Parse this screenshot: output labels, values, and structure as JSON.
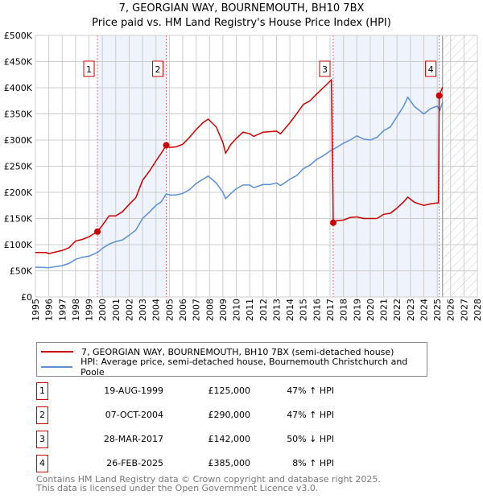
{
  "chart_data": {
    "type": "line",
    "title": "7, GEORGIAN WAY, BOURNEMOUTH, BH10 7BX",
    "subtitle": "Price paid vs. HM Land Registry's House Price Index (HPI)",
    "xlim": [
      1995,
      2028
    ],
    "ylim": [
      0,
      500000
    ],
    "x_ticks": [
      "1995",
      "1996",
      "1997",
      "1998",
      "1999",
      "2000",
      "2001",
      "2002",
      "2003",
      "2004",
      "2005",
      "2006",
      "2007",
      "2008",
      "2009",
      "2010",
      "2011",
      "2012",
      "2013",
      "2014",
      "2015",
      "2016",
      "2017",
      "2018",
      "2019",
      "2020",
      "2021",
      "2022",
      "2023",
      "2024",
      "2025",
      "2026",
      "2027",
      "2028"
    ],
    "y_ticks": [
      {
        "v": 0,
        "label": "£0"
      },
      {
        "v": 50000,
        "label": "£50K"
      },
      {
        "v": 100000,
        "label": "£100K"
      },
      {
        "v": 150000,
        "label": "£150K"
      },
      {
        "v": 200000,
        "label": "£200K"
      },
      {
        "v": 250000,
        "label": "£250K"
      },
      {
        "v": 300000,
        "label": "£300K"
      },
      {
        "v": 350000,
        "label": "£350K"
      },
      {
        "v": 400000,
        "label": "£400K"
      },
      {
        "v": 450000,
        "label": "£450K"
      },
      {
        "v": 500000,
        "label": "£500K"
      }
    ],
    "grid": true,
    "shaded_ranges": [
      [
        1999.63,
        2004.77
      ],
      [
        2017.24,
        2025.15
      ]
    ],
    "forecast_from": 2025.4,
    "series": [
      {
        "name": "7, GEORGIAN WAY, BOURNEMOUTH, BH10 7BX (semi-detached house)",
        "color": "#cc0000",
        "x": [
          1995,
          1995.8,
          1996,
          1997,
          1997.5,
          1998,
          1998.5,
          1999,
          1999.63,
          2000,
          2000.5,
          2001,
          2001.5,
          2002,
          2002.5,
          2003,
          2003.5,
          2004,
          2004.4,
          2004.77,
          2005,
          2005.5,
          2006,
          2006.5,
          2007,
          2007.5,
          2007.9,
          2008.5,
          2009,
          2009.2,
          2009.6,
          2010,
          2010.5,
          2011,
          2011.3,
          2012,
          2012.5,
          2013,
          2013.3,
          2014,
          2014.5,
          2015,
          2015.5,
          2016,
          2016.5,
          2017.1,
          2017.24,
          2017.5,
          2018,
          2018.5,
          2019,
          2019.5,
          2020,
          2020.5,
          2021,
          2021.5,
          2022,
          2022.5,
          2022.8,
          2023.3,
          2024,
          2024.5,
          2025.1,
          2025.15,
          2025.4
        ],
        "y": [
          85000,
          85000,
          83000,
          89000,
          94000,
          107000,
          110000,
          115000,
          125000,
          137000,
          155000,
          155000,
          163000,
          177000,
          190000,
          223000,
          240000,
          260000,
          275000,
          290000,
          286000,
          287000,
          292000,
          305000,
          320000,
          333000,
          340000,
          325000,
          295000,
          275000,
          292000,
          303000,
          315000,
          312000,
          307000,
          315000,
          316000,
          317000,
          312000,
          333000,
          350000,
          368000,
          375000,
          388000,
          400000,
          415000,
          142000,
          146000,
          147000,
          152000,
          153000,
          150000,
          150000,
          150000,
          158000,
          160000,
          170000,
          182000,
          191000,
          181000,
          175000,
          178000,
          180000,
          385000,
          401000
        ]
      },
      {
        "name": "HPI: Average price, semi-detached house, Bournemouth Christchurch and Poole",
        "color": "#5b8fd4",
        "x": [
          1995,
          1996,
          1997,
          1997.5,
          1998,
          1998.5,
          1999,
          1999.63,
          2000,
          2000.5,
          2001,
          2001.5,
          2002,
          2002.5,
          2003,
          2003.5,
          2004,
          2004.4,
          2004.77,
          2005,
          2005.5,
          2006,
          2006.5,
          2007,
          2007.5,
          2007.9,
          2008.5,
          2009,
          2009.2,
          2009.6,
          2010,
          2010.5,
          2011,
          2011.3,
          2012,
          2012.5,
          2013,
          2013.3,
          2014,
          2014.5,
          2015,
          2015.5,
          2016,
          2016.5,
          2017,
          2017.5,
          2018,
          2018.5,
          2019,
          2019.5,
          2020,
          2020.5,
          2021,
          2021.5,
          2022,
          2022.5,
          2022.8,
          2023.3,
          2024,
          2024.5,
          2025,
          2025.2,
          2025.4
        ],
        "y": [
          57000,
          56000,
          60000,
          64000,
          72000,
          76000,
          78000,
          85000,
          93000,
          101000,
          106000,
          109000,
          118000,
          128000,
          150000,
          162000,
          175000,
          182000,
          197000,
          195000,
          195000,
          198000,
          205000,
          217000,
          225000,
          231000,
          218000,
          200000,
          188000,
          198000,
          207000,
          214000,
          214000,
          209000,
          215000,
          215000,
          218000,
          213000,
          225000,
          232000,
          245000,
          252000,
          263000,
          270000,
          279000,
          286000,
          294000,
          300000,
          308000,
          302000,
          300000,
          305000,
          318000,
          325000,
          345000,
          365000,
          382000,
          364000,
          350000,
          360000,
          365000,
          357000,
          372000
        ]
      }
    ],
    "sales": [
      {
        "label": "1",
        "x": 2004.77,
        "x_sale": 1999.63,
        "price": 125000,
        "date": "19-AUG-1999",
        "price_label": "£125,000",
        "hpi": "47% ↑ HPI"
      },
      {
        "label": "2",
        "x_sale": 2004.77,
        "price": 290000,
        "date": "07-OCT-2004",
        "price_label": "£290,000",
        "hpi": "47% ↑ HPI"
      },
      {
        "label": "3",
        "x_sale": 2017.24,
        "price": 142000,
        "date": "28-MAR-2017",
        "price_label": "£142,000",
        "hpi": "50% ↓ HPI"
      },
      {
        "label": "4",
        "x_sale": 2025.15,
        "price": 385000,
        "date": "26-FEB-2025",
        "price_label": "£385,000",
        "hpi": "8% ↑ HPI"
      }
    ]
  },
  "footer": {
    "line1": "Contains HM Land Registry data © Crown copyright and database right 2025.",
    "line2": "This data is licensed under the Open Government Licence v3.0."
  }
}
